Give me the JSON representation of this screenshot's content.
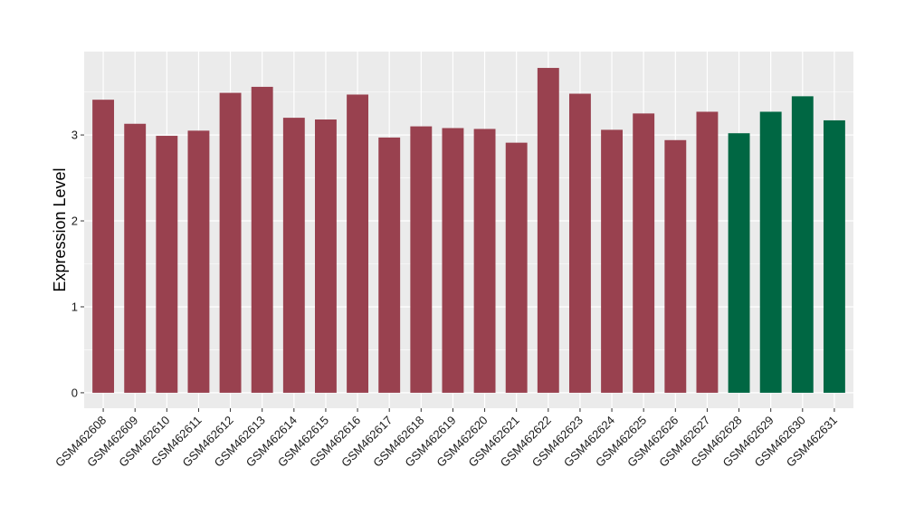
{
  "chart_data": {
    "type": "bar",
    "ylabel": "Expression Level",
    "xlabel": "",
    "ylim": [
      -0.18,
      3.97
    ],
    "yticks": [
      0,
      1,
      2,
      3
    ],
    "grid": true,
    "colors": {
      "panel": "#EBEBEB",
      "grid": "#FFFFFF",
      "group1": "#99414F",
      "group2": "#006743"
    },
    "categories": [
      "GSM462608",
      "GSM462609",
      "GSM462610",
      "GSM462611",
      "GSM462612",
      "GSM462613",
      "GSM462614",
      "GSM462615",
      "GSM462616",
      "GSM462617",
      "GSM462618",
      "GSM462619",
      "GSM462620",
      "GSM462621",
      "GSM462622",
      "GSM462623",
      "GSM462624",
      "GSM462625",
      "GSM462626",
      "GSM462627",
      "GSM462628",
      "GSM462629",
      "GSM462630",
      "GSM462631"
    ],
    "values": [
      3.41,
      3.13,
      2.99,
      3.05,
      3.49,
      3.56,
      3.2,
      3.18,
      3.47,
      2.97,
      3.1,
      3.08,
      3.07,
      2.91,
      3.78,
      3.48,
      3.06,
      3.25,
      2.94,
      3.27,
      3.02,
      3.27,
      3.45,
      3.17
    ],
    "groups": [
      "group1",
      "group1",
      "group1",
      "group1",
      "group1",
      "group1",
      "group1",
      "group1",
      "group1",
      "group1",
      "group1",
      "group1",
      "group1",
      "group1",
      "group1",
      "group1",
      "group1",
      "group1",
      "group1",
      "group1",
      "group2",
      "group2",
      "group2",
      "group2"
    ]
  }
}
